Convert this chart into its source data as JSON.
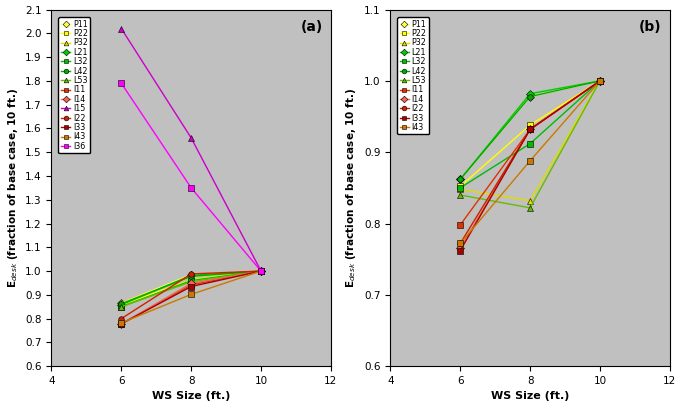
{
  "ws_sizes": [
    6,
    8,
    10
  ],
  "series_a": [
    {
      "label": "P11",
      "color": "#FFFF44",
      "marker": "D",
      "ms": 4,
      "values": [
        0.865,
        0.985,
        1.0
      ]
    },
    {
      "label": "P22",
      "color": "#FFFF00",
      "marker": "s",
      "ms": 4,
      "values": [
        0.858,
        0.962,
        1.0
      ]
    },
    {
      "label": "P32",
      "color": "#DDDD00",
      "marker": "^",
      "ms": 4,
      "values": [
        0.865,
        0.975,
        1.0
      ]
    },
    {
      "label": "L21",
      "color": "#00CC00",
      "marker": "D",
      "ms": 4,
      "values": [
        0.858,
        0.982,
        1.0
      ]
    },
    {
      "label": "L32",
      "color": "#00BB00",
      "marker": "s",
      "ms": 4,
      "values": [
        0.85,
        0.96,
        1.0
      ]
    },
    {
      "label": "L42",
      "color": "#00AA00",
      "marker": "o",
      "ms": 4,
      "values": [
        0.862,
        0.978,
        1.0
      ]
    },
    {
      "label": "L53",
      "color": "#66BB00",
      "marker": "^",
      "ms": 4,
      "values": [
        0.85,
        0.955,
        1.0
      ]
    },
    {
      "label": "I11",
      "color": "#DD3300",
      "marker": "s",
      "ms": 4,
      "values": [
        0.778,
        0.942,
        1.0
      ]
    },
    {
      "label": "I14",
      "color": "#EE6655",
      "marker": "D",
      "ms": 4,
      "values": [
        0.778,
        0.948,
        1.0
      ]
    },
    {
      "label": "I15",
      "color": "#CC00CC",
      "marker": "^",
      "ms": 4,
      "values": [
        2.02,
        1.56,
        1.0
      ]
    },
    {
      "label": "I22",
      "color": "#CC2200",
      "marker": "o",
      "ms": 4,
      "values": [
        0.8,
        0.988,
        1.0
      ]
    },
    {
      "label": "I33",
      "color": "#AA0000",
      "marker": "s",
      "ms": 4,
      "values": [
        0.778,
        0.935,
        1.0
      ]
    },
    {
      "label": "I43",
      "color": "#CC7700",
      "marker": "s",
      "ms": 4,
      "values": [
        0.782,
        0.902,
        1.0
      ]
    },
    {
      "label": "I36",
      "color": "#FF00FF",
      "marker": "s",
      "ms": 4,
      "values": [
        1.79,
        1.35,
        1.0
      ]
    }
  ],
  "series_b": [
    {
      "label": "P11",
      "color": "#FFFF44",
      "marker": "D",
      "ms": 4,
      "values": [
        0.862,
        0.978,
        1.0
      ]
    },
    {
      "label": "P22",
      "color": "#FFFF00",
      "marker": "s",
      "ms": 4,
      "values": [
        0.852,
        0.938,
        1.0
      ]
    },
    {
      "label": "P32",
      "color": "#DDDD00",
      "marker": "^",
      "ms": 4,
      "values": [
        0.848,
        0.832,
        1.0
      ]
    },
    {
      "label": "L21",
      "color": "#00CC00",
      "marker": "D",
      "ms": 4,
      "values": [
        0.862,
        0.982,
        1.0
      ]
    },
    {
      "label": "L32",
      "color": "#00BB00",
      "marker": "s",
      "ms": 4,
      "values": [
        0.85,
        0.912,
        1.0
      ]
    },
    {
      "label": "L42",
      "color": "#00AA00",
      "marker": "o",
      "ms": 4,
      "values": [
        0.862,
        0.978,
        1.0
      ]
    },
    {
      "label": "L53",
      "color": "#66BB00",
      "marker": "^",
      "ms": 4,
      "values": [
        0.84,
        0.822,
        1.0
      ]
    },
    {
      "label": "I11",
      "color": "#DD3300",
      "marker": "s",
      "ms": 4,
      "values": [
        0.798,
        0.932,
        1.0
      ]
    },
    {
      "label": "I14",
      "color": "#EE6655",
      "marker": "D",
      "ms": 4,
      "values": [
        0.765,
        0.932,
        1.0
      ]
    },
    {
      "label": "I22",
      "color": "#CC2200",
      "marker": "o",
      "ms": 4,
      "values": [
        0.772,
        0.932,
        1.0
      ]
    },
    {
      "label": "I33",
      "color": "#AA0000",
      "marker": "s",
      "ms": 4,
      "values": [
        0.762,
        0.932,
        1.0
      ]
    },
    {
      "label": "I43",
      "color": "#CC7700",
      "marker": "s",
      "ms": 4,
      "values": [
        0.772,
        0.888,
        1.0
      ]
    }
  ],
  "xlabel": "WS Size (ft.)",
  "ylabel": "E$_{desk}$ (fraction of base case, 10 ft.)",
  "xlim": [
    4,
    12
  ],
  "xticks": [
    4,
    6,
    8,
    10,
    12
  ],
  "ylim_a": [
    0.6,
    2.1
  ],
  "yticks_a": [
    0.6,
    0.7,
    0.8,
    0.9,
    1.0,
    1.1,
    1.2,
    1.3,
    1.4,
    1.5,
    1.6,
    1.7,
    1.8,
    1.9,
    2.0,
    2.1
  ],
  "ylim_b": [
    0.6,
    1.1
  ],
  "yticks_b": [
    0.6,
    0.7,
    0.8,
    0.9,
    1.0,
    1.1
  ],
  "bg_color": "#C0C0C0",
  "label_a": "(a)",
  "label_b": "(b)"
}
